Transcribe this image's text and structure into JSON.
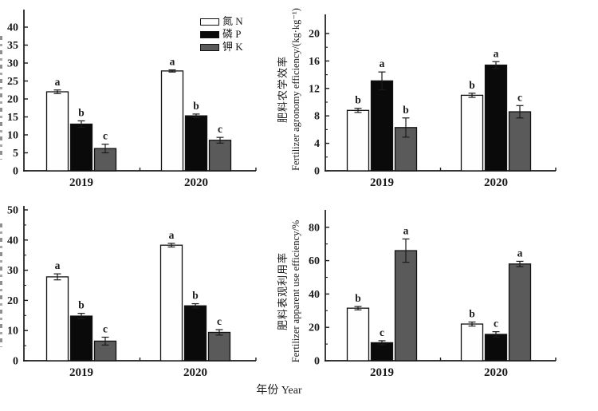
{
  "figure": {
    "x_axis_label": "年份 Year",
    "categories": [
      "2019",
      "2020"
    ],
    "legend": {
      "position": "top-left-panel-upper-right",
      "items": [
        {
          "label": "氮 N",
          "color": "#fefefe"
        },
        {
          "label": "磷 P",
          "color": "#0a0a0a"
        },
        {
          "label": "钾 K",
          "color": "#5a5a5a"
        }
      ]
    },
    "colors": {
      "axis": "#1a1a1a",
      "bar_stroke": "#111111",
      "text": "#1a1a1a",
      "background": "#ffffff"
    }
  },
  "chart_data": [
    {
      "id": "panel-top-left",
      "type": "bar",
      "ylabel_zh": "",
      "ylabel_en": "",
      "ylabel_clipped": true,
      "ylim": [
        0,
        45
      ],
      "ytick_step": 5,
      "ytick_max": 40,
      "minor_step": 0,
      "grid": false,
      "categories": [
        "2019",
        "2020"
      ],
      "series": [
        {
          "name": "N",
          "values": [
            22.0,
            27.8
          ]
        },
        {
          "name": "P",
          "values": [
            13.0,
            15.3
          ]
        },
        {
          "name": "K",
          "values": [
            6.2,
            8.5
          ]
        }
      ],
      "errors": [
        [
          0.5,
          0.3
        ],
        [
          0.9,
          0.5
        ],
        [
          1.2,
          0.8
        ]
      ],
      "letters": [
        [
          "a",
          "a"
        ],
        [
          "b",
          "b"
        ],
        [
          "c",
          "c"
        ]
      ]
    },
    {
      "id": "panel-top-right",
      "type": "bar",
      "ylabel_zh": "肥料农学效率",
      "ylabel_en": "Fertilizer agronomy efficiency/(kg·kg⁻¹)",
      "ylabel_clipped": false,
      "ylim": [
        0,
        23
      ],
      "ytick_step": 4,
      "ytick_max": 20,
      "minor_step": 2,
      "grid": false,
      "categories": [
        "2019",
        "2020"
      ],
      "series": [
        {
          "name": "N",
          "values": [
            8.8,
            11.0
          ]
        },
        {
          "name": "P",
          "values": [
            13.1,
            15.4
          ]
        },
        {
          "name": "K",
          "values": [
            6.3,
            8.6
          ]
        }
      ],
      "errors": [
        [
          0.3,
          0.3
        ],
        [
          1.3,
          0.5
        ],
        [
          1.4,
          0.9
        ]
      ],
      "letters": [
        [
          "b",
          "b"
        ],
        [
          "a",
          "a"
        ],
        [
          "b",
          "c"
        ]
      ]
    },
    {
      "id": "panel-bottom-left",
      "type": "bar",
      "ylabel_zh": "",
      "ylabel_en": "",
      "ylabel_clipped": true,
      "ylim": [
        0,
        51
      ],
      "ytick_step": 10,
      "ytick_max": 50,
      "minor_step": 5,
      "grid": false,
      "categories": [
        "2019",
        "2020"
      ],
      "series": [
        {
          "name": "N",
          "values": [
            27.8,
            38.3
          ]
        },
        {
          "name": "P",
          "values": [
            14.8,
            18.2
          ]
        },
        {
          "name": "K",
          "values": [
            6.5,
            9.4
          ]
        }
      ],
      "errors": [
        [
          1.0,
          0.6
        ],
        [
          0.9,
          0.7
        ],
        [
          1.3,
          0.9
        ]
      ],
      "letters": [
        [
          "a",
          "a"
        ],
        [
          "b",
          "b"
        ],
        [
          "c",
          "c"
        ]
      ]
    },
    {
      "id": "panel-bottom-right",
      "type": "bar",
      "ylabel_zh": "肥料表观利用率",
      "ylabel_en": "Fertilizer apparent use efficiency/%",
      "ylabel_clipped": false,
      "ylim": [
        0,
        90
      ],
      "ytick_step": 20,
      "ytick_max": 80,
      "minor_step": 10,
      "grid": false,
      "categories": [
        "2019",
        "2020"
      ],
      "series": [
        {
          "name": "N",
          "values": [
            31.5,
            22.0
          ]
        },
        {
          "name": "P",
          "values": [
            10.8,
            15.8
          ]
        },
        {
          "name": "K",
          "values": [
            66.0,
            58.0
          ]
        }
      ],
      "errors": [
        [
          1.0,
          1.2
        ],
        [
          1.2,
          1.6
        ],
        [
          7.0,
          1.6
        ]
      ],
      "letters": [
        [
          "b",
          "b"
        ],
        [
          "c",
          "c"
        ],
        [
          "a",
          "a"
        ]
      ]
    }
  ]
}
